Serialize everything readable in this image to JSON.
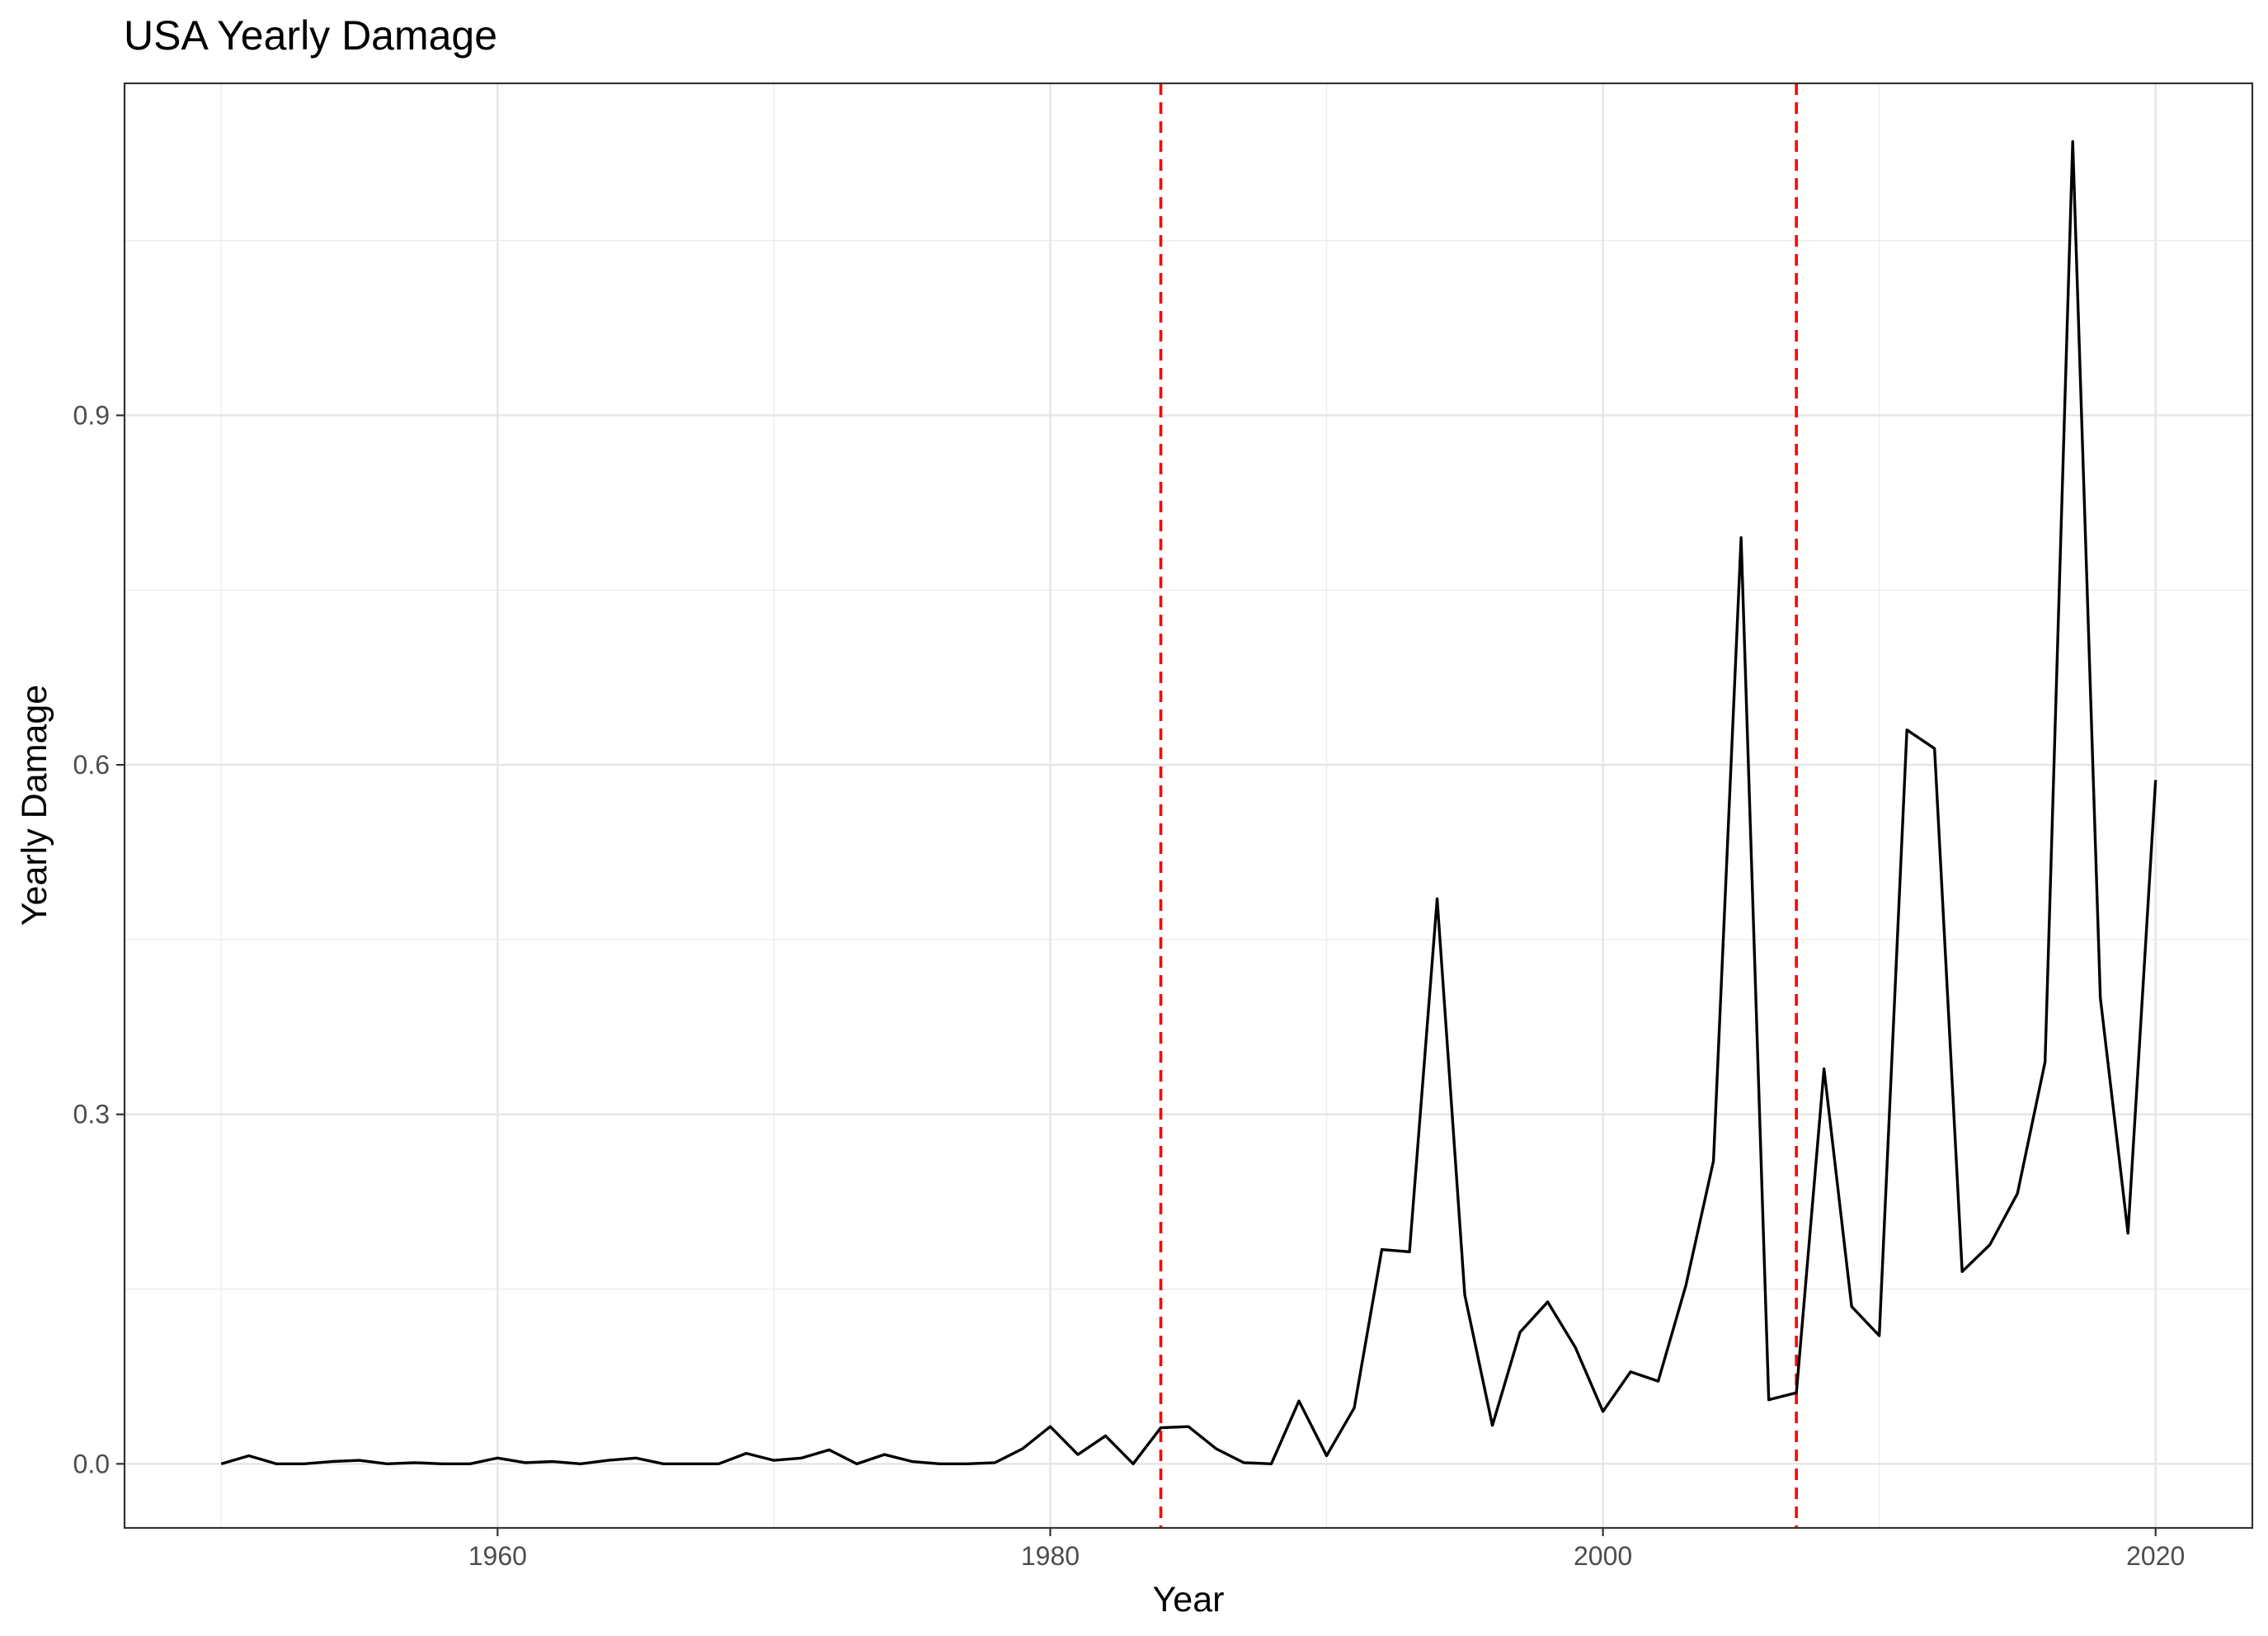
{
  "chart_data": {
    "type": "line",
    "title": "USA Yearly Damage",
    "xlabel": "Year",
    "ylabel": "Yearly Damage",
    "xlim": [
      1946.5,
      2023.5
    ],
    "ylim": [
      -0.055,
      1.185
    ],
    "x_ticks": [
      1960,
      1980,
      2000,
      2020
    ],
    "x_tick_labels": [
      "1960",
      "1980",
      "2000",
      "2020"
    ],
    "x_minor_ticks": [
      1950,
      1970,
      1990,
      2010
    ],
    "y_ticks": [
      0.0,
      0.3,
      0.6,
      0.9
    ],
    "y_tick_labels": [
      "0.0",
      "0.3",
      "0.6",
      "0.9"
    ],
    "y_minor_ticks": [
      0.15,
      0.45,
      0.75,
      1.05
    ],
    "grid": true,
    "reference_lines": [
      {
        "orientation": "vertical",
        "x": 1984,
        "style": "dashed",
        "color": "#ff0000"
      },
      {
        "orientation": "vertical",
        "x": 2007,
        "style": "dashed",
        "color": "#ff0000"
      }
    ],
    "series": [
      {
        "color": "#000000",
        "x": [
          1950,
          1951,
          1952,
          1953,
          1954,
          1955,
          1956,
          1957,
          1958,
          1959,
          1960,
          1961,
          1962,
          1963,
          1964,
          1965,
          1966,
          1967,
          1968,
          1969,
          1970,
          1971,
          1972,
          1973,
          1974,
          1975,
          1976,
          1977,
          1978,
          1979,
          1980,
          1981,
          1982,
          1983,
          1984,
          1985,
          1986,
          1987,
          1988,
          1989,
          1990,
          1991,
          1992,
          1993,
          1994,
          1995,
          1996,
          1997,
          1998,
          1999,
          2000,
          2001,
          2002,
          2003,
          2004,
          2005,
          2006,
          2007,
          2008,
          2009,
          2010,
          2011,
          2012,
          2013,
          2014,
          2015,
          2016,
          2017,
          2018,
          2019,
          2020
        ],
        "values": [
          0.0,
          0.007,
          0.0,
          0.0,
          0.002,
          0.003,
          0.0,
          0.001,
          0.0,
          0.0,
          0.005,
          0.001,
          0.002,
          0.0,
          0.003,
          0.005,
          0.0,
          0.0,
          0.0,
          0.009,
          0.003,
          0.005,
          0.012,
          0.0,
          0.008,
          0.002,
          0.0,
          0.0,
          0.001,
          0.013,
          0.032,
          0.008,
          0.024,
          0.0,
          0.031,
          0.032,
          0.013,
          0.001,
          0.0,
          0.054,
          0.007,
          0.048,
          0.184,
          0.182,
          0.485,
          0.145,
          0.033,
          0.113,
          0.139,
          0.1,
          0.045,
          0.079,
          0.071,
          0.153,
          0.26,
          0.795,
          0.055,
          0.061,
          0.339,
          0.135,
          0.11,
          0.63,
          0.614,
          0.165,
          0.188,
          0.232,
          0.345,
          1.135,
          0.4,
          0.198,
          0.587
        ]
      }
    ]
  }
}
